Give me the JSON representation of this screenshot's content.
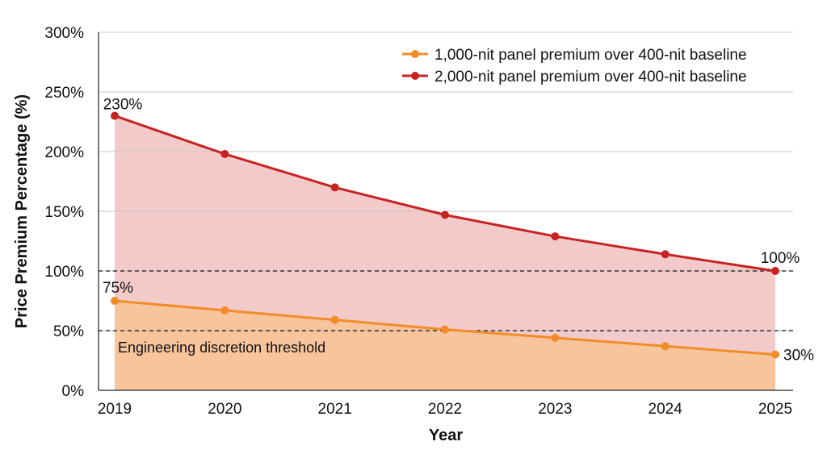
{
  "chart_data": {
    "type": "line",
    "categories": [
      "2019",
      "2020",
      "2021",
      "2022",
      "2023",
      "2024",
      "2025"
    ],
    "series": [
      {
        "name": "1,000-nit panel premium over 400-nit baseline",
        "color": "#f28c28",
        "fill": "#f7c49c",
        "values": [
          75,
          67,
          59,
          51,
          44,
          37,
          30
        ]
      },
      {
        "name": "2,000-nit panel premium over 400-nit baseline",
        "color": "#c82323",
        "fill": "#f3caca",
        "values": [
          230,
          198,
          170,
          147,
          129,
          114,
          100
        ]
      }
    ],
    "xlabel": "Year",
    "ylabel": "Price Premium Percentage (%)",
    "ylim": [
      0,
      300
    ],
    "yticks": [
      0,
      50,
      100,
      150,
      200,
      250,
      300
    ],
    "ytick_labels": [
      "0%",
      "50%",
      "100%",
      "150%",
      "200%",
      "250%",
      "300%"
    ],
    "grid": true,
    "legend_position": "top-right",
    "reference_lines": [
      {
        "value": 100,
        "style": "dashed"
      },
      {
        "value": 50,
        "style": "dashed",
        "label": "Engineering discretion threshold"
      }
    ],
    "annotations": [
      {
        "series": 1,
        "index": 0,
        "text": "230%"
      },
      {
        "series": 1,
        "index": 6,
        "text": "100%"
      },
      {
        "series": 0,
        "index": 0,
        "text": "75%"
      },
      {
        "series": 0,
        "index": 6,
        "text": "30%"
      }
    ]
  }
}
